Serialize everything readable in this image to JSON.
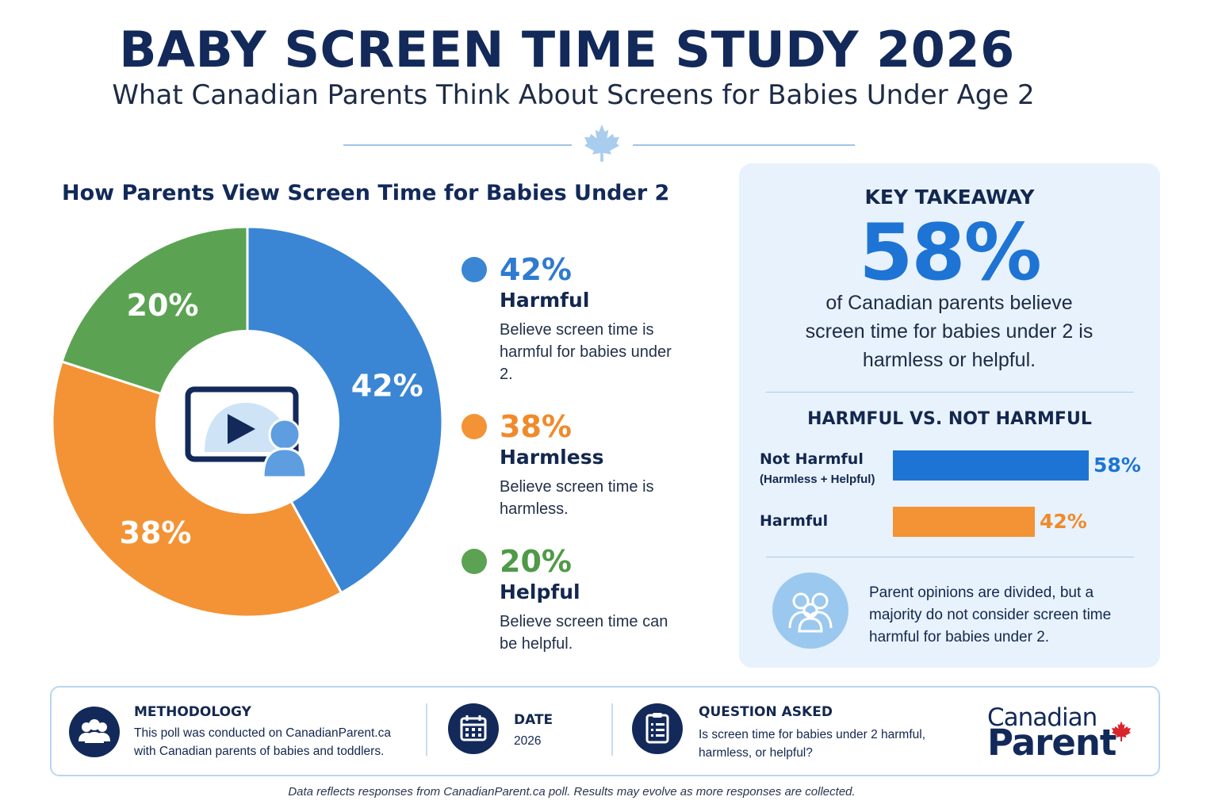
{
  "header": {
    "title": "BABY SCREEN TIME STUDY 2026",
    "subtitle": "What Canadian Parents Think About Screens for Babies Under Age 2"
  },
  "colors": {
    "harmful": "#3a86d4",
    "harmless": "#f39335",
    "helpful": "#5ba353",
    "navy": "#12295a",
    "accent_blue": "#1e74d4"
  },
  "chart_data": [
    {
      "type": "pie",
      "title": "How Parents View Screen Time for Babies Under 2",
      "categories": [
        "Harmful",
        "Harmless",
        "Helpful"
      ],
      "values": [
        42,
        38,
        20
      ],
      "value_labels": [
        "42%",
        "38%",
        "20%"
      ],
      "unit": "%",
      "donut": true,
      "center_icon": "video-play-with-baby-icon"
    },
    {
      "type": "bar",
      "orientation": "horizontal",
      "title": "HARMFUL VS. NOT HARMFUL",
      "categories": [
        "Not Harmful",
        "Harmful"
      ],
      "category_notes": [
        "(Harmless + Helpful)",
        ""
      ],
      "values": [
        58,
        42
      ],
      "value_labels": [
        "58%",
        "42%"
      ],
      "unit": "%",
      "xlim": [
        0,
        100
      ]
    }
  ],
  "legend": [
    {
      "pct": "42%",
      "name": "Harmful",
      "desc": "Believe screen time is harmful for babies under 2."
    },
    {
      "pct": "38%",
      "name": "Harmless",
      "desc": "Believe screen time is harmless."
    },
    {
      "pct": "20%",
      "name": "Helpful",
      "desc": "Believe screen time can be helpful."
    }
  ],
  "takeaway": {
    "label": "KEY TAKEAWAY",
    "big_value": "58%",
    "text": "of Canadian parents believe screen time for babies under 2 is harmless or helpful.",
    "note": "Parent opinions are divided, but a majority do not consider screen time harmful for babies under 2."
  },
  "footer": {
    "methodology_title": "METHODOLOGY",
    "methodology_text": "This poll was conducted on CanadianParent.ca with Canadian parents of babies and toddlers.",
    "date_title": "DATE",
    "date_value": "2026",
    "question_title": "QUESTION ASKED",
    "question_text": "Is screen time for babies under 2 harmful, harmless, or helpful?",
    "logo_top": "Canadian",
    "logo_bottom": "Parent"
  },
  "disclaimer": "Data reflects responses from CanadianParent.ca poll. Results may evolve as more responses are collected."
}
